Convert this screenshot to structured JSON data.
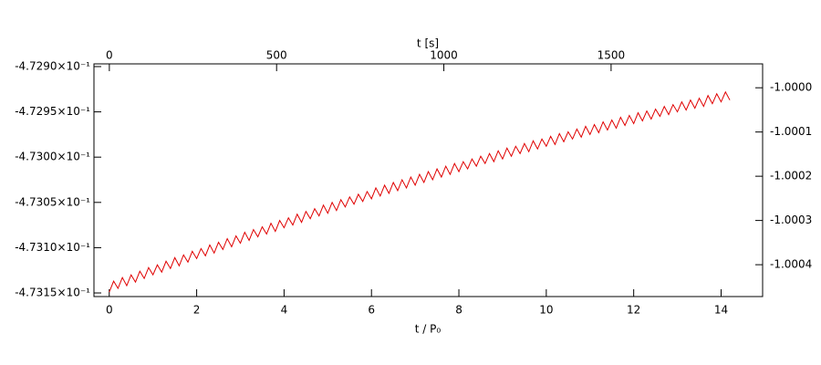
{
  "chart_data": {
    "type": "line",
    "xlabel": "t / P₀",
    "x2label": "t [s]",
    "color": "#e00000",
    "xlim": [
      -0.35,
      14.95
    ],
    "xticks": [
      0,
      2,
      4,
      6,
      8,
      10,
      12,
      14
    ],
    "x2lim": [
      -46,
      1953
    ],
    "x2ticks": [
      0,
      500,
      1000,
      1500
    ],
    "ylim": [
      -0.473154,
      -0.472897
    ],
    "yticks": [
      {
        "value": -0.4729,
        "label": "-4.7290×10⁻¹"
      },
      {
        "value": -0.47295,
        "label": "-4.7295×10⁻¹"
      },
      {
        "value": -0.473,
        "label": "-4.7300×10⁻¹"
      },
      {
        "value": -0.47305,
        "label": "-4.7305×10⁻¹"
      },
      {
        "value": -0.4731,
        "label": "-4.7310×10⁻¹"
      },
      {
        "value": -0.47315,
        "label": "-4.7315×10⁻¹"
      }
    ],
    "y2lim": [
      -1.000472,
      -0.999946
    ],
    "y2ticks": [
      {
        "value": -1,
        "label": "-1.0000"
      },
      -1.0001,
      -1.0002,
      -1.0003,
      -1.0004
    ],
    "x": [
      0,
      0.1,
      0.2,
      0.3,
      0.4,
      0.5,
      0.6,
      0.7,
      0.8,
      0.9,
      1,
      1.1,
      1.2,
      1.3,
      1.4,
      1.5,
      1.6,
      1.7,
      1.8,
      1.9,
      2,
      2.1,
      2.2,
      2.3,
      2.4,
      2.5,
      2.6,
      2.7,
      2.8,
      2.9,
      3,
      3.1,
      3.2,
      3.3,
      3.4,
      3.5,
      3.6,
      3.7,
      3.8,
      3.9,
      4,
      4.1,
      4.2,
      4.3,
      4.4,
      4.5,
      4.6,
      4.7,
      4.8,
      4.9,
      5,
      5.1,
      5.2,
      5.3,
      5.4,
      5.5,
      5.6,
      5.7,
      5.8,
      5.9,
      6,
      6.1,
      6.2,
      6.3,
      6.4,
      6.5,
      6.6,
      6.7,
      6.8,
      6.9,
      7,
      7.1,
      7.2,
      7.3,
      7.4,
      7.5,
      7.6,
      7.7,
      7.8,
      7.9,
      8,
      8.1,
      8.2,
      8.3,
      8.4,
      8.5,
      8.6,
      8.7,
      8.8,
      8.9,
      9,
      9.1,
      9.2,
      9.3,
      9.4,
      9.5,
      9.6,
      9.7,
      9.8,
      9.9,
      10,
      10.1,
      10.2,
      10.3,
      10.4,
      10.5,
      10.6,
      10.7,
      10.8,
      10.9,
      11,
      11.1,
      11.2,
      11.3,
      11.4,
      11.5,
      11.6,
      11.7,
      11.8,
      11.9,
      12,
      12.1,
      12.2,
      12.3,
      12.4,
      12.5,
      12.6,
      12.7,
      12.8,
      12.9,
      13,
      13.1,
      13.2,
      13.3,
      13.4,
      13.5,
      13.6,
      13.7,
      13.8,
      13.9,
      14,
      14.1,
      14.2
    ],
    "values": [
      -0.473149,
      -0.473137,
      -0.473145,
      -0.473133,
      -0.473142,
      -0.47313,
      -0.473138,
      -0.473126,
      -0.473134,
      -0.473122,
      -0.47313,
      -0.473119,
      -0.473127,
      -0.473115,
      -0.473123,
      -0.473111,
      -0.47312,
      -0.473108,
      -0.473116,
      -0.473104,
      -0.473112,
      -0.473101,
      -0.473109,
      -0.473097,
      -0.473106,
      -0.473094,
      -0.473102,
      -0.47309,
      -0.473099,
      -0.473087,
      -0.473095,
      -0.473083,
      -0.473092,
      -0.47308,
      -0.473088,
      -0.473077,
      -0.473085,
      -0.473073,
      -0.473082,
      -0.47307,
      -0.473078,
      -0.473067,
      -0.473075,
      -0.473063,
      -0.473072,
      -0.47306,
      -0.473068,
      -0.473057,
      -0.473065,
      -0.473053,
      -0.473062,
      -0.47305,
      -0.473059,
      -0.473047,
      -0.473055,
      -0.473044,
      -0.473052,
      -0.473041,
      -0.473049,
      -0.473038,
      -0.473046,
      -0.473034,
      -0.473043,
      -0.473031,
      -0.47304,
      -0.473028,
      -0.473037,
      -0.473025,
      -0.473034,
      -0.473022,
      -0.473031,
      -0.473019,
      -0.473028,
      -0.473016,
      -0.473025,
      -0.473013,
      -0.473022,
      -0.47301,
      -0.473019,
      -0.473007,
      -0.473016,
      -0.473005,
      -0.473013,
      -0.473002,
      -0.47301,
      -0.472999,
      -0.473007,
      -0.472996,
      -0.473005,
      -0.472993,
      -0.473002,
      -0.47299,
      -0.472999,
      -0.472988,
      -0.472996,
      -0.472985,
      -0.472994,
      -0.472982,
      -0.472991,
      -0.47298,
      -0.472988,
      -0.472977,
      -0.472986,
      -0.472974,
      -0.472983,
      -0.472972,
      -0.47298,
      -0.472969,
      -0.472978,
      -0.472966,
      -0.472975,
      -0.472964,
      -0.472973,
      -0.472961,
      -0.47297,
      -0.472959,
      -0.472968,
      -0.472956,
      -0.472965,
      -0.472954,
      -0.472963,
      -0.472951,
      -0.47296,
      -0.472949,
      -0.472958,
      -0.472947,
      -0.472955,
      -0.472944,
      -0.472953,
      -0.472942,
      -0.47295,
      -0.472939,
      -0.472948,
      -0.472937,
      -0.472946,
      -0.472935,
      -0.472944,
      -0.472932,
      -0.472941,
      -0.47293,
      -0.472939,
      -0.472928,
      -0.472937
    ]
  }
}
